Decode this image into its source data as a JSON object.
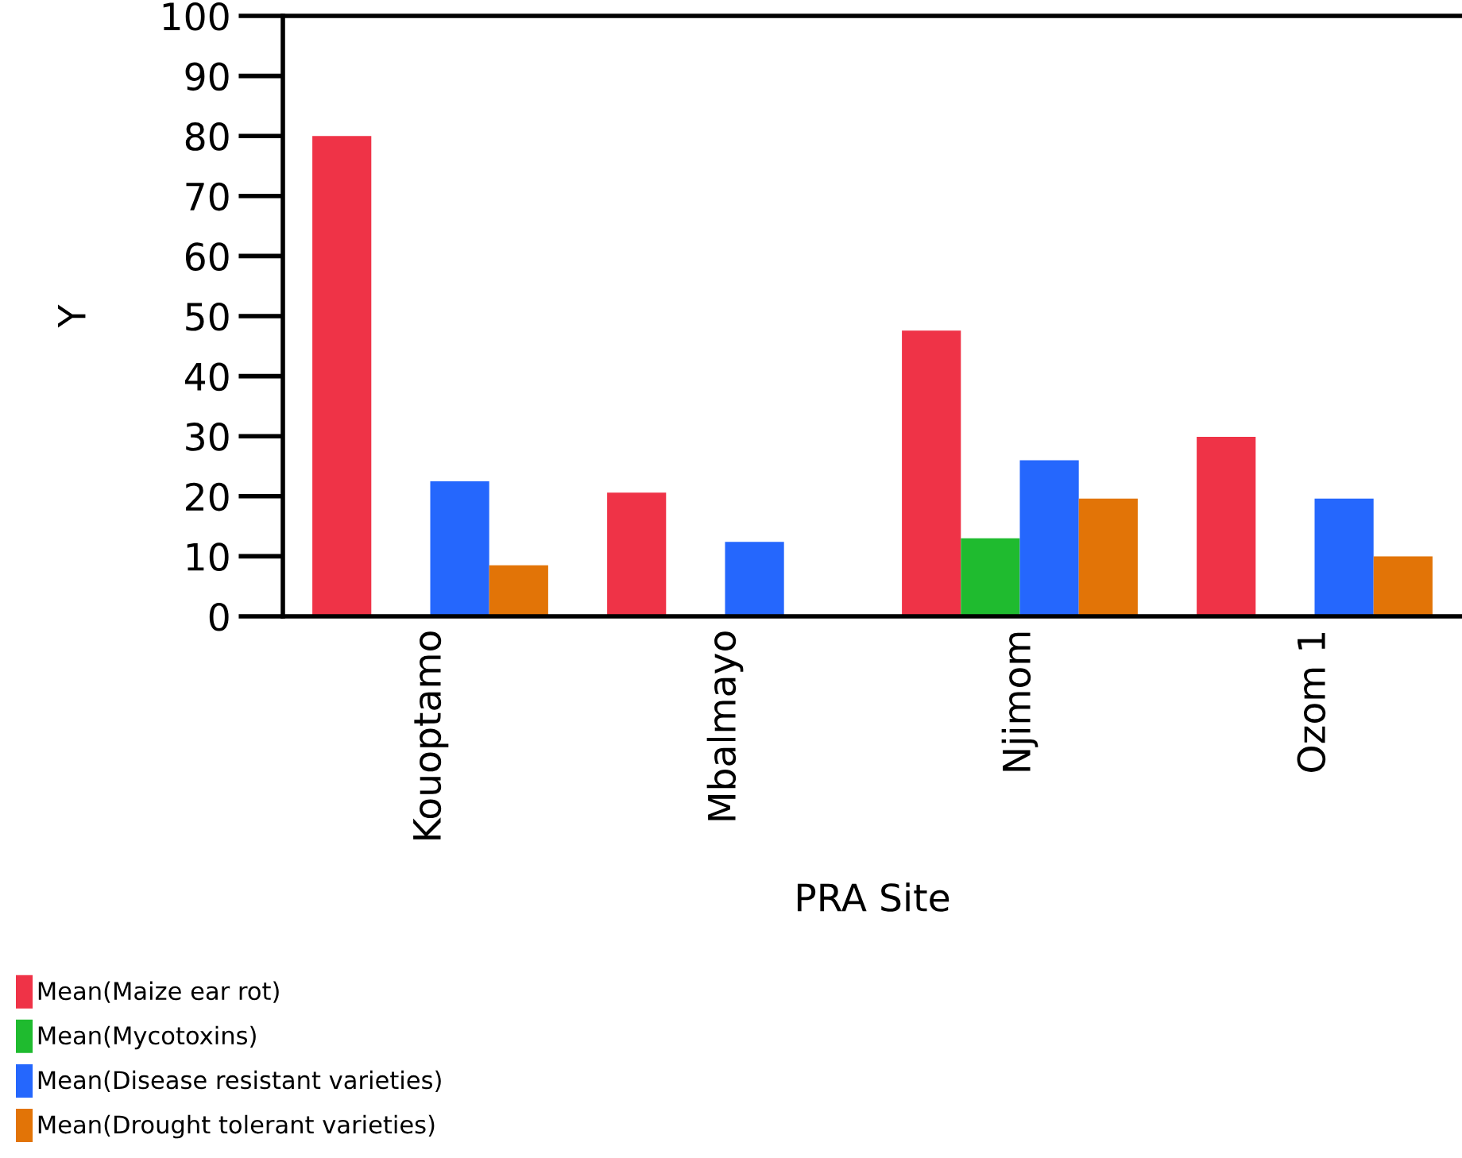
{
  "chart_data": {
    "type": "bar",
    "xlabel": "PRA Site",
    "ylabel": "Y",
    "categories": [
      "Kouoptamo",
      "Mbalmayo",
      "Njimom",
      "Ozom 1"
    ],
    "series": [
      {
        "name": "Mean(Maize ear rot)",
        "color": "#ef3347",
        "values": [
          80,
          20.6,
          47.6,
          29.9
        ]
      },
      {
        "name": "Mean(Mycotoxins)",
        "color": "#1fbb2f",
        "values": [
          0,
          0,
          13,
          0
        ]
      },
      {
        "name": "Mean(Disease resistant varieties)",
        "color": "#2567fd",
        "values": [
          22.5,
          12.4,
          26,
          19.6
        ]
      },
      {
        "name": "Mean(Drought tolerant varieties)",
        "color": "#e27407",
        "values": [
          8.5,
          0,
          19.6,
          10
        ]
      }
    ],
    "ylim": [
      0,
      100
    ],
    "yticks": [
      0,
      10,
      20,
      30,
      40,
      50,
      60,
      70,
      80,
      90,
      100
    ],
    "grid": false,
    "legend": "bottom left"
  }
}
